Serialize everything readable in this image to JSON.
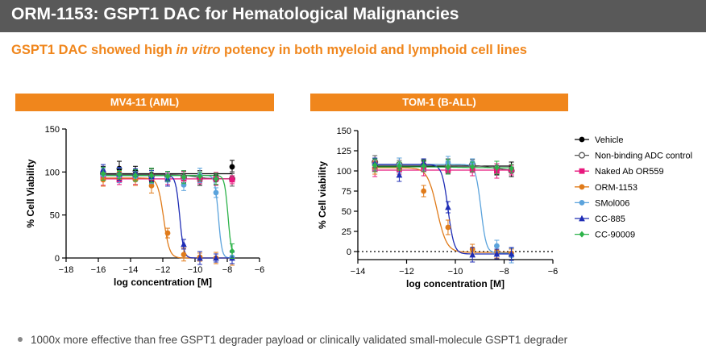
{
  "header": {
    "title": "ORM-1153: GSPT1 DAC for Hematological Malignancies",
    "subtitle_part1": "GSPT1 DAC showed high ",
    "subtitle_italic": "in vitro",
    "subtitle_part2": " potency in both myeloid and lymphoid cell lines"
  },
  "bullet": {
    "text": "1000x more effective than free GSPT1 degrader payload or clinically validated small-molecule GSPT1 degrader"
  },
  "legend": [
    {
      "name": "Vehicle",
      "color": "#000000",
      "marker": "circle"
    },
    {
      "name": "Non-binding ADC control",
      "color": "#555555",
      "marker": "circle-open"
    },
    {
      "name": "Naked Ab OR559",
      "color": "#e8177d",
      "marker": "square"
    },
    {
      "name": "ORM-1153",
      "color": "#e07b1a",
      "marker": "circle"
    },
    {
      "name": "SMol006",
      "color": "#5ba3dc",
      "marker": "circle"
    },
    {
      "name": "CC-885",
      "color": "#1f2db5",
      "marker": "triangle"
    },
    {
      "name": "CC-90009",
      "color": "#2db34a",
      "marker": "diamond"
    }
  ],
  "chart_data": [
    {
      "type": "line",
      "panel_title": "MV4-11 (AML)",
      "xlabel": "log concentration [M]",
      "ylabel": "% Cell Viability",
      "xlim": [
        -18,
        -6
      ],
      "ylim": [
        0,
        150
      ],
      "xticks": [
        -18,
        -16,
        -14,
        -12,
        -10,
        -8,
        -6
      ],
      "yticks": [
        0,
        50,
        100,
        150
      ],
      "x": [
        -15.7,
        -14.7,
        -13.7,
        -12.7,
        -11.7,
        -10.7,
        -9.7,
        -8.7,
        -7.7
      ],
      "series": [
        {
          "name": "Vehicle",
          "values": [
            100,
            104,
            101,
            97,
            96,
            94,
            93,
            91,
            106
          ],
          "fit": {
            "top": 98,
            "bottom": 98,
            "logec50": -10,
            "slope": 1
          }
        },
        {
          "name": "Non-binding ADC control",
          "values": [
            98,
            97,
            96,
            95,
            95,
            94,
            93,
            92,
            92
          ],
          "fit": {
            "top": 97,
            "bottom": 92,
            "logec50": -10,
            "slope": 1
          }
        },
        {
          "name": "Naked Ab OR559",
          "values": [
            93,
            91,
            93,
            93,
            92,
            92,
            92,
            92,
            91
          ],
          "fit": {
            "top": 92,
            "bottom": 92,
            "logec50": -10,
            "slope": 1
          }
        },
        {
          "name": "ORM-1153",
          "values": [
            91,
            96,
            91,
            84,
            29,
            4,
            1,
            0,
            0
          ],
          "fit": {
            "top": 93,
            "bottom": 0,
            "logec50": -11.95,
            "slope": 2.4
          }
        },
        {
          "name": "SMol006",
          "values": [
            97,
            96,
            95,
            94,
            93,
            85,
            96,
            76,
            1
          ],
          "fit": {
            "top": 96,
            "bottom": 0,
            "logec50": -8.55,
            "slope": 4
          }
        },
        {
          "name": "CC-885",
          "values": [
            103,
            98,
            99,
            95,
            92,
            16,
            0,
            0,
            0
          ],
          "fit": {
            "top": 96,
            "bottom": 0,
            "logec50": -10.95,
            "slope": 3.5
          }
        },
        {
          "name": "CC-90009",
          "values": [
            98,
            97,
            96,
            96,
            95,
            94,
            95,
            92,
            8
          ],
          "fit": {
            "top": 96,
            "bottom": 0,
            "logec50": -7.95,
            "slope": 4
          }
        }
      ]
    },
    {
      "type": "line",
      "panel_title": "TOM-1 (B-ALL)",
      "xlabel": "log concentration [M]",
      "ylabel": "% Cell viability",
      "xlim": [
        -14,
        -6
      ],
      "ylim": [
        -10,
        150
      ],
      "xticks": [
        -14,
        -12,
        -10,
        -8,
        -6
      ],
      "yticks": [
        0,
        25,
        50,
        75,
        100,
        125,
        150
      ],
      "baseline": 0,
      "x": [
        -13.3,
        -12.3,
        -11.3,
        -10.3,
        -9.3,
        -8.3,
        -7.7
      ],
      "series": [
        {
          "name": "Vehicle",
          "values": [
            108,
            107,
            106,
            104,
            104,
            102,
            102
          ],
          "fit": {
            "top": 106,
            "bottom": 106,
            "logec50": -10,
            "slope": 1
          }
        },
        {
          "name": "Non-binding ADC control",
          "values": [
            111,
            108,
            107,
            106,
            108,
            104,
            100
          ],
          "fit": {
            "top": 108,
            "bottom": 100,
            "logec50": -8.5,
            "slope": 1
          }
        },
        {
          "name": "Naked Ab OR559",
          "values": [
            102,
            102,
            102,
            101,
            101,
            100,
            101
          ],
          "fit": {
            "top": 101,
            "bottom": 101,
            "logec50": -10,
            "slope": 1
          }
        },
        {
          "name": "ORM-1153",
          "values": [
            104,
            103,
            75,
            30,
            3,
            0,
            -2
          ],
          "fit": {
            "top": 104,
            "bottom": -1,
            "logec50": -10.75,
            "slope": 2.2
          }
        },
        {
          "name": "SMol006",
          "values": [
            108,
            107,
            107,
            110,
            110,
            7,
            -5
          ],
          "fit": {
            "top": 108,
            "bottom": -2,
            "logec50": -8.95,
            "slope": 4
          }
        },
        {
          "name": "CC-885",
          "values": [
            110,
            95,
            110,
            55,
            -4,
            -3,
            -3
          ],
          "fit": {
            "top": 108,
            "bottom": -3,
            "logec50": -10.3,
            "slope": 3.5
          }
        },
        {
          "name": "CC-90009",
          "values": [
            107,
            106,
            106,
            105,
            105,
            104,
            103
          ],
          "fit": {
            "top": 105,
            "bottom": 104,
            "logec50": -10,
            "slope": 1
          }
        }
      ]
    }
  ]
}
